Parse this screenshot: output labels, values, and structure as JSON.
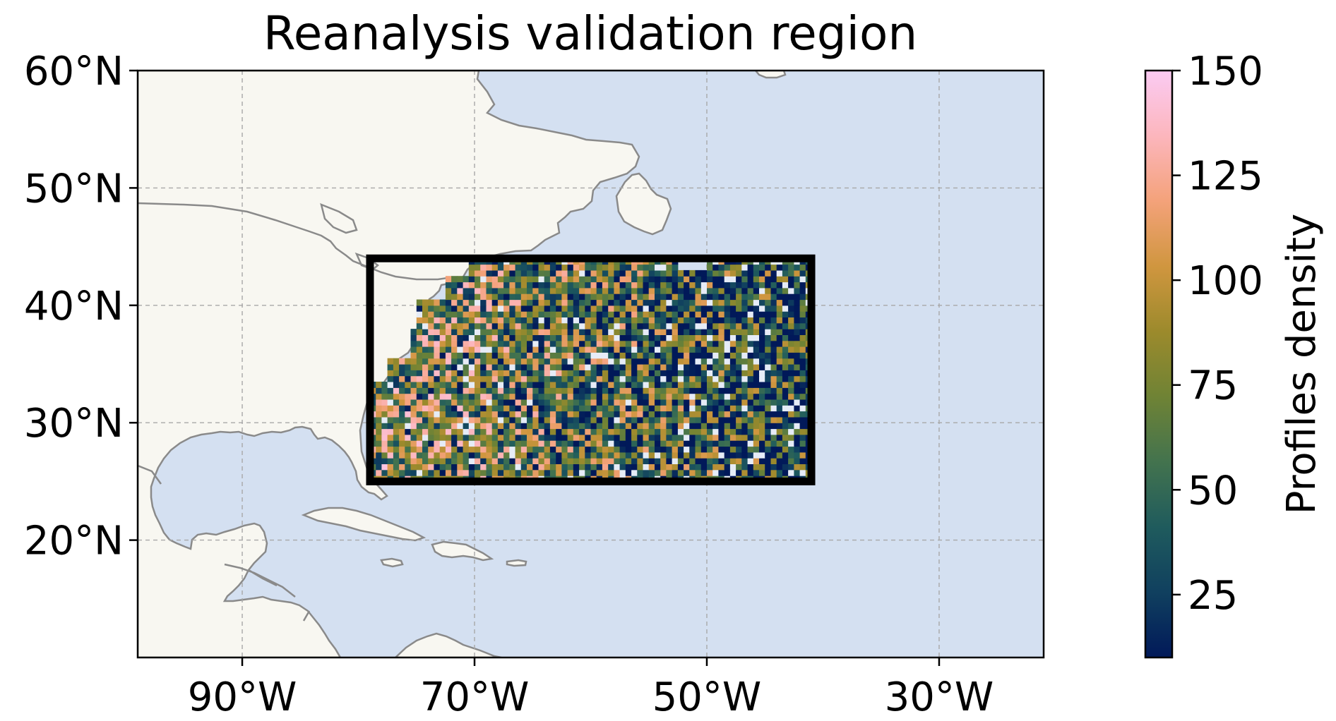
{
  "title": "Reanalysis validation region",
  "map": {
    "lon_range": [
      -99,
      -21
    ],
    "lat_range": [
      10,
      60
    ],
    "lat_ticks": [
      {
        "value": 60,
        "label": "60°N"
      },
      {
        "value": 50,
        "label": "50°N"
      },
      {
        "value": 40,
        "label": "40°N"
      },
      {
        "value": 30,
        "label": "30°N"
      },
      {
        "value": 20,
        "label": "20°N"
      }
    ],
    "lon_ticks": [
      {
        "value": -90,
        "label": "90°W"
      },
      {
        "value": -70,
        "label": "70°W"
      },
      {
        "value": -50,
        "label": "50°W"
      },
      {
        "value": -30,
        "label": "30°W"
      }
    ],
    "gridlines": true,
    "ocean_color": "#d4e0f1",
    "land_color": "#f8f7f1",
    "coastline_color": "#8a8a8a"
  },
  "region_box": {
    "lon": [
      -79,
      -41
    ],
    "lat": [
      25,
      44
    ],
    "color": "#000000"
  },
  "chart_data": {
    "type": "heatmap",
    "title": "Reanalysis validation region",
    "value_description": "gridded profile density within region box",
    "region_lon": [
      -79,
      -41
    ],
    "region_lat": [
      25,
      44
    ],
    "cell_size_deg": 0.5,
    "value_range": [
      10,
      150
    ],
    "colorbar": {
      "label": "Profiles density",
      "range": [
        10,
        150
      ],
      "ticks": [
        25,
        50,
        75,
        100,
        125,
        150
      ],
      "colormap": "batlow",
      "stops": [
        "#011959",
        "#10405f",
        "#1f5b5d",
        "#43734e",
        "#6f8335",
        "#9c8a2c",
        "#d0963f",
        "#f4a27a",
        "#fcb6bd",
        "#fbcbf3"
      ]
    }
  }
}
